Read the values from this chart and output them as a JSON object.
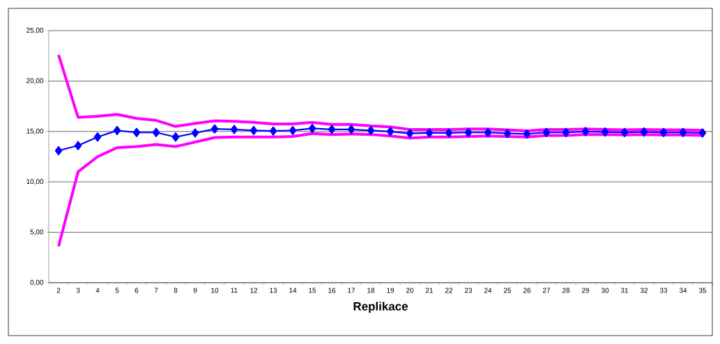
{
  "chart_data": {
    "type": "line",
    "xlabel": "Replikace",
    "categories": [
      "2",
      "3",
      "4",
      "5",
      "6",
      "7",
      "8",
      "9",
      "10",
      "11",
      "12",
      "13",
      "14",
      "15",
      "16",
      "17",
      "18",
      "19",
      "20",
      "21",
      "22",
      "23",
      "24",
      "25",
      "26",
      "27",
      "28",
      "29",
      "30",
      "31",
      "32",
      "33",
      "34",
      "35"
    ],
    "series": [
      {
        "color": "#ff00ff",
        "marker": "none",
        "values": [
          22.6,
          16.4,
          16.5,
          16.7,
          16.3,
          16.1,
          15.5,
          15.8,
          16.05,
          16.0,
          15.9,
          15.75,
          15.75,
          15.9,
          15.7,
          15.7,
          15.55,
          15.45,
          15.2,
          15.2,
          15.2,
          15.25,
          15.25,
          15.15,
          15.05,
          15.2,
          15.2,
          15.25,
          15.2,
          15.15,
          15.2,
          15.15,
          15.15,
          15.1
        ]
      },
      {
        "color": "#ff00ff",
        "marker": "none",
        "values": [
          3.6,
          11.0,
          12.5,
          13.4,
          13.5,
          13.7,
          13.5,
          13.95,
          14.4,
          14.45,
          14.45,
          14.45,
          14.5,
          14.8,
          14.7,
          14.75,
          14.7,
          14.55,
          14.35,
          14.45,
          14.45,
          14.5,
          14.55,
          14.5,
          14.45,
          14.6,
          14.6,
          14.7,
          14.7,
          14.65,
          14.7,
          14.65,
          14.65,
          14.6
        ]
      },
      {
        "color": "#0000ff",
        "marker": "diamond",
        "values": [
          13.1,
          13.6,
          14.45,
          15.1,
          14.9,
          14.9,
          14.45,
          14.85,
          15.25,
          15.2,
          15.1,
          15.05,
          15.1,
          15.3,
          15.2,
          15.2,
          15.1,
          15.0,
          14.8,
          14.85,
          14.85,
          14.9,
          14.9,
          14.8,
          14.75,
          14.9,
          14.9,
          15.0,
          14.95,
          14.9,
          14.95,
          14.9,
          14.9,
          14.85
        ]
      }
    ],
    "ylim": [
      0,
      25
    ],
    "yticks": [
      {
        "value": 0,
        "label": "0,00"
      },
      {
        "value": 5,
        "label": "5,00"
      },
      {
        "value": 10,
        "label": "10,00"
      },
      {
        "value": 15,
        "label": "15,00"
      },
      {
        "value": 20,
        "label": "20,00"
      },
      {
        "value": 25,
        "label": "25,00"
      }
    ],
    "grid": "y",
    "line_style": "solid"
  }
}
